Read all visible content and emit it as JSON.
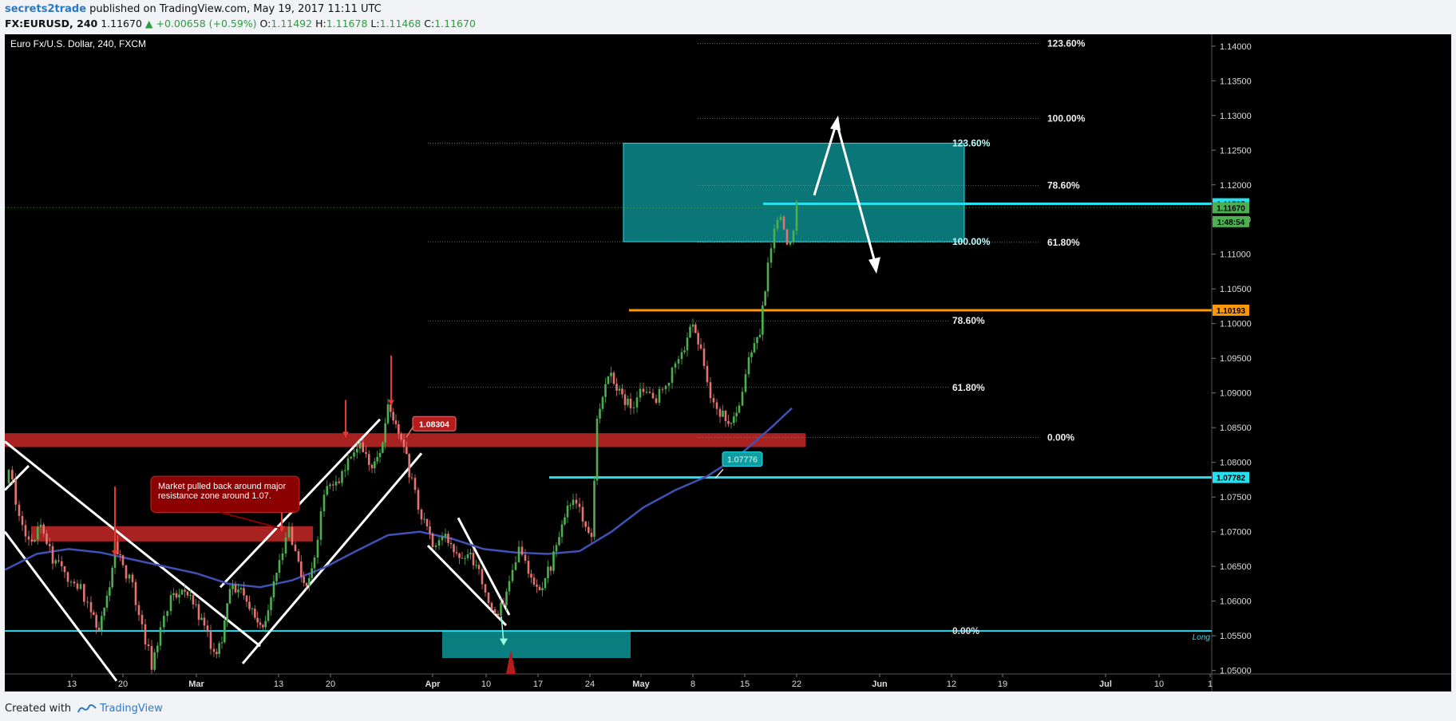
{
  "header": {
    "author": "secrets2trade",
    "published": " published on TradingView.com, May 19, 2017 11:11 UTC",
    "symbol": "FX:EURUSD, 240",
    "last": "1.11670",
    "change": "▲ +0.00658 (+0.59%)",
    "o_label": "O:",
    "o": "1.11492",
    "h_label": "H:",
    "h": "1.11678",
    "l_label": "L:",
    "l": "1.11468",
    "c_label": "C:",
    "c": "1.11670"
  },
  "footer": {
    "created_with": "Created with",
    "brand": "TradingView"
  },
  "colors": {
    "bull": "#4caf50",
    "bear": "#e57373",
    "ma": "#3f51b5",
    "cyan": "#26e0f0",
    "orange": "#ff9800",
    "red_zone": "#c62828",
    "teal_zone": "#0e9ea0"
  },
  "chart_data": {
    "type": "candlestick",
    "title": "Euro Fx/U.S. Dollar, 240, FXCM",
    "ylim": [
      1.0495,
      1.1417
    ],
    "y_ticks": [
      "1.14000",
      "1.13500",
      "1.13000",
      "1.12500",
      "1.12000",
      "1.11500",
      "1.11000",
      "1.10500",
      "1.10000",
      "1.09500",
      "1.09000",
      "1.08500",
      "1.08000",
      "1.07500",
      "1.07000",
      "1.06500",
      "1.06000",
      "1.05500",
      "1.05000"
    ],
    "x_ticks": [
      "13",
      "20",
      "Mar",
      "13",
      "20",
      "Apr",
      "10",
      "17",
      "24",
      "May",
      "8",
      "15",
      "22",
      "Jun",
      "12",
      "19",
      "Jul",
      "10",
      "1"
    ],
    "price_path": [
      [
        0,
        1.077
      ],
      [
        5,
        1.079
      ],
      [
        18,
        1.072
      ],
      [
        30,
        1.068
      ],
      [
        45,
        1.0705
      ],
      [
        60,
        1.066
      ],
      [
        75,
        1.064
      ],
      [
        95,
        1.062
      ],
      [
        108,
        1.058
      ],
      [
        118,
        1.056
      ],
      [
        128,
        1.06
      ],
      [
        138,
        1.068
      ],
      [
        148,
        1.065
      ],
      [
        160,
        1.062
      ],
      [
        172,
        1.056
      ],
      [
        184,
        1.051
      ],
      [
        195,
        1.056
      ],
      [
        208,
        1.06
      ],
      [
        222,
        1.062
      ],
      [
        236,
        1.06
      ],
      [
        250,
        1.056
      ],
      [
        262,
        1.0525
      ],
      [
        272,
        1.054
      ],
      [
        282,
        1.062
      ],
      [
        296,
        1.061
      ],
      [
        310,
        1.059
      ],
      [
        320,
        1.056
      ],
      [
        330,
        1.058
      ],
      [
        344,
        1.066
      ],
      [
        356,
        1.07
      ],
      [
        368,
        1.065
      ],
      [
        378,
        1.0615
      ],
      [
        388,
        1.066
      ],
      [
        400,
        1.076
      ],
      [
        415,
        1.077
      ],
      [
        430,
        1.08
      ],
      [
        445,
        1.082
      ],
      [
        460,
        1.0795
      ],
      [
        470,
        1.081
      ],
      [
        480,
        1.088
      ],
      [
        490,
        1.085
      ],
      [
        500,
        1.082
      ],
      [
        510,
        1.077
      ],
      [
        522,
        1.072
      ],
      [
        536,
        1.068
      ],
      [
        552,
        1.069
      ],
      [
        566,
        1.066
      ],
      [
        580,
        1.067
      ],
      [
        594,
        1.064
      ],
      [
        606,
        1.06
      ],
      [
        618,
        1.058
      ],
      [
        632,
        1.062
      ],
      [
        644,
        1.068
      ],
      [
        656,
        1.064
      ],
      [
        670,
        1.062
      ],
      [
        684,
        1.065
      ],
      [
        698,
        1.071
      ],
      [
        712,
        1.075
      ],
      [
        724,
        1.072
      ],
      [
        735,
        1.07
      ],
      [
        742,
        1.086
      ],
      [
        756,
        1.093
      ],
      [
        770,
        1.09
      ],
      [
        784,
        1.088
      ],
      [
        800,
        1.091
      ],
      [
        816,
        1.089
      ],
      [
        832,
        1.092
      ],
      [
        848,
        1.096
      ],
      [
        862,
        1.1
      ],
      [
        872,
        1.096
      ],
      [
        884,
        1.09
      ],
      [
        896,
        1.087
      ],
      [
        910,
        1.086
      ],
      [
        920,
        1.088
      ],
      [
        932,
        1.095
      ],
      [
        946,
        1.099
      ],
      [
        956,
        1.108
      ],
      [
        964,
        1.113
      ],
      [
        972,
        1.116
      ],
      [
        980,
        1.111
      ],
      [
        988,
        1.113
      ],
      [
        992,
        1.1167
      ]
    ],
    "levels": [
      {
        "label": "1.11727",
        "value": 1.11727,
        "color": "#26e0f0"
      },
      {
        "label": "1.11670",
        "value": 1.1167,
        "color": "#4caf50"
      },
      {
        "label": "1:48:54",
        "value": 1.1147,
        "color": "#4caf50"
      },
      {
        "label": "1.10193",
        "value": 1.10193,
        "color": "#ff9800"
      },
      {
        "label": "1.07782",
        "value": 1.07782,
        "color": "#26e0f0"
      }
    ],
    "fib_left": [
      {
        "label": "123.60%",
        "value": 1.126
      },
      {
        "label": "100.00%",
        "value": 1.1118
      },
      {
        "label": "78.60%",
        "value": 1.1004
      },
      {
        "label": "61.80%",
        "value": 1.0908
      },
      {
        "label": "0.00%",
        "value": 1.0557
      }
    ],
    "fib_right": [
      {
        "label": "123.60%",
        "value": 1.1404
      },
      {
        "label": "100.00%",
        "value": 1.1296
      },
      {
        "label": "78.60%",
        "value": 1.1199
      },
      {
        "label": "61.80%",
        "value": 1.1117
      },
      {
        "label": "0.00%",
        "value": 1.0836
      }
    ],
    "annotations": {
      "callout_1": "Market pulled back around major",
      "callout_2": "resistance zone around 1.07.",
      "price_label_red": "1.08304",
      "price_label_teal": "1.07776",
      "long_label": "Long"
    }
  }
}
